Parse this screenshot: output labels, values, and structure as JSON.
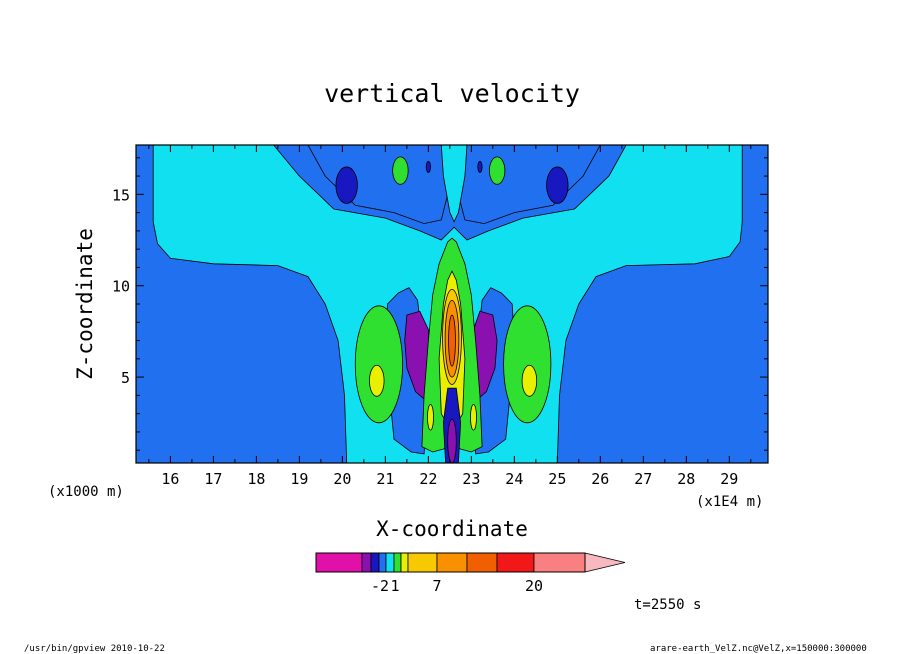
{
  "chart_data": {
    "type": "heatmap",
    "title": "vertical velocity",
    "xlabel": "X-coordinate",
    "ylabel": "Z-coordinate",
    "x_units_left": "(x1000 m)",
    "x_units_right": "(x1E4 m)",
    "xlim": [
      15.2,
      29.9
    ],
    "ylim": [
      0.3,
      17.7
    ],
    "x_ticks": [
      16,
      17,
      18,
      19,
      20,
      21,
      22,
      23,
      24,
      25,
      26,
      27,
      28,
      29
    ],
    "y_ticks": [
      5,
      10,
      15
    ],
    "colorbar": {
      "colors": [
        "#e010a8",
        "#8a10b0",
        "#1818c0",
        "#2070f0",
        "#10e0f0",
        "#30e030",
        "#e8f000",
        "#f8c800",
        "#f89000",
        "#f06000",
        "#f01818",
        "#f88080",
        "#f8b8c0"
      ],
      "tick_labels": [
        "-2",
        "1",
        "7",
        "20"
      ]
    },
    "levels": {
      "-8": "#e010a8",
      "-3": "#8a10b0",
      "-2": "#1818c0",
      "-1": "#2070f0",
      "0": "#10e0f0",
      "1": "#30e030",
      "2": "#e8f000",
      "5": "#f8c800",
      "7": "#f89000",
      "10": "#f06000"
    },
    "features": [
      {
        "name": "updraft-core",
        "x": 22.55,
        "z": 7.0,
        "value": 10
      },
      {
        "name": "downdraft-left",
        "x": 21.9,
        "z": 6.5,
        "value": -3
      },
      {
        "name": "downdraft-right",
        "x": 23.3,
        "z": 6.5,
        "value": -3
      },
      {
        "name": "updraft-left-flank",
        "x": 20.8,
        "z": 5.0,
        "value": 2
      },
      {
        "name": "updraft-right-flank",
        "x": 24.3,
        "z": 5.0,
        "value": 2
      },
      {
        "name": "upper-downdraft-left",
        "x": 20.1,
        "z": 15.5,
        "value": -2
      },
      {
        "name": "upper-downdraft-right",
        "x": 25.0,
        "z": 15.5,
        "value": -2
      },
      {
        "name": "upper-updraft-left",
        "x": 21.4,
        "z": 16.2,
        "value": 1
      },
      {
        "name": "upper-updraft-right",
        "x": 23.6,
        "z": 16.2,
        "value": 1
      }
    ]
  },
  "time_label": "t=2550  s",
  "footer": {
    "left": "/usr/bin/gpview   2010-10-22",
    "right": "arare-earth_VelZ.nc@VelZ,x=150000:300000"
  }
}
